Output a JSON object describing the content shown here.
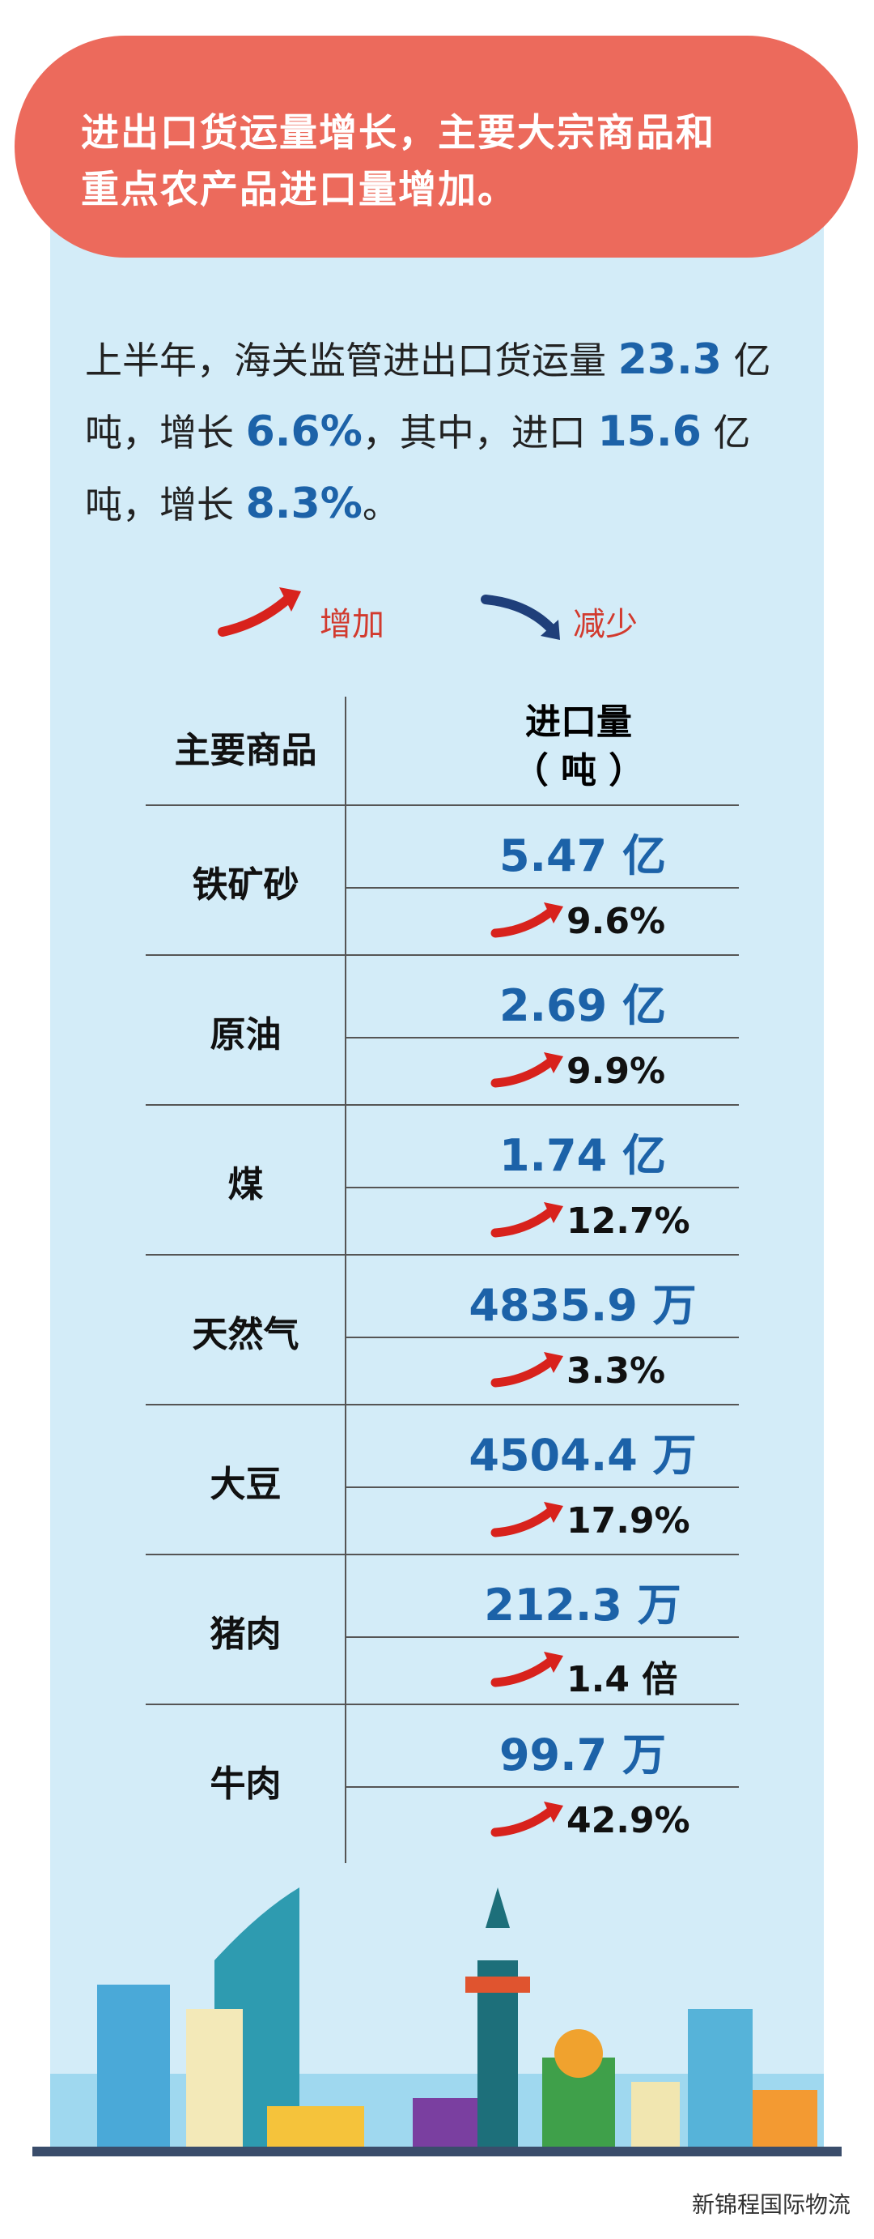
{
  "header": {
    "title_lines": [
      "进出口货运量增长，主要大宗商品和",
      "重点农产品进口量增加。"
    ]
  },
  "intro": {
    "segments": [
      "上半年，海关监管进出口货运量 ",
      "23.3",
      " 亿",
      "吨，增长 ",
      "6.6%",
      "，其中，进口 ",
      "15.6",
      " 亿吨，",
      "增长 ",
      "8.3%",
      "。"
    ]
  },
  "legend": {
    "increase": "增加",
    "decrease": "减少"
  },
  "table": {
    "header": {
      "name": "主要商品",
      "amount_lines": [
        "进口量",
        "（ 吨 ）"
      ]
    },
    "rows": [
      {
        "name": "铁矿砂",
        "amount": "5.47 亿",
        "change": "9.6%"
      },
      {
        "name": "原油",
        "amount": "2.69 亿",
        "change": "9.9%"
      },
      {
        "name": "煤",
        "amount": "1.74 亿",
        "change": "12.7%"
      },
      {
        "name": "天然气",
        "amount": "4835.9 万",
        "change": "3.3%"
      },
      {
        "name": "大豆",
        "amount": "4504.4 万",
        "change": "17.9%"
      },
      {
        "name": "猪肉",
        "amount": "212.3 万",
        "change": "1.4 倍"
      },
      {
        "name": "牛肉",
        "amount": "99.7 万",
        "change": "42.9%"
      }
    ]
  },
  "footer": {
    "watermark": "新锦程国际物流"
  }
}
